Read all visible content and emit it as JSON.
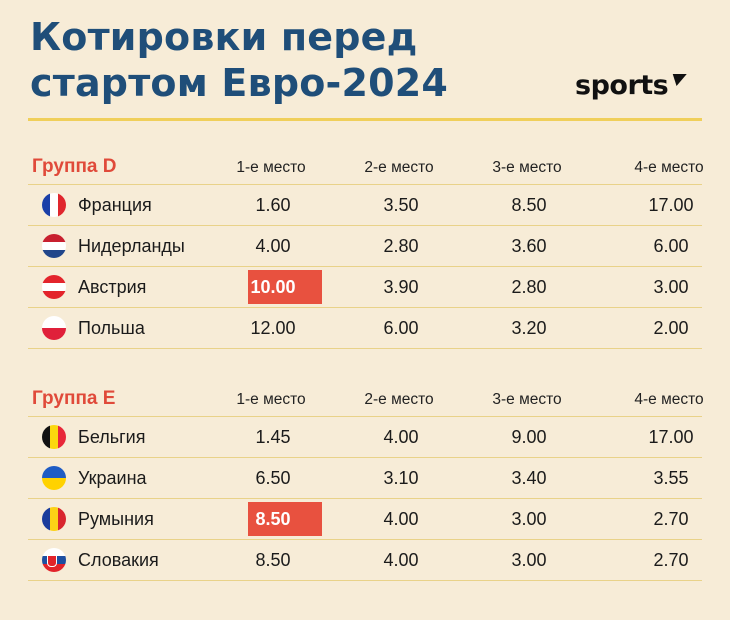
{
  "title": {
    "line1": "Котировки перед",
    "line2": "стартом Евро-2024"
  },
  "logo": {
    "text": "sports"
  },
  "colors": {
    "title": "#1f4e79",
    "accent": "#e04a3a",
    "highlight": "#e8513f",
    "rule": "#f0cf5a",
    "background": "#f7ecd7"
  },
  "columns": [
    "1-е место",
    "2-е место",
    "3-е место",
    "4-е место"
  ],
  "groups": [
    {
      "name": "Группа D",
      "rows": [
        {
          "country": "Франция",
          "flag": "france-flag-icon",
          "values": [
            "1.60",
            "3.50",
            "8.50",
            "17.00"
          ],
          "highlight": false
        },
        {
          "country": "Нидерланды",
          "flag": "netherlands-flag-icon",
          "values": [
            "4.00",
            "2.80",
            "3.60",
            "6.00"
          ],
          "highlight": false
        },
        {
          "country": "Австрия",
          "flag": "austria-flag-icon",
          "values": [
            "10.00",
            "3.90",
            "2.80",
            "3.00"
          ],
          "highlight": true
        },
        {
          "country": "Польша",
          "flag": "poland-flag-icon",
          "values": [
            "12.00",
            "6.00",
            "3.20",
            "2.00"
          ],
          "highlight": false
        }
      ]
    },
    {
      "name": "Группа Е",
      "rows": [
        {
          "country": "Бельгия",
          "flag": "belgium-flag-icon",
          "values": [
            "1.45",
            "4.00",
            "9.00",
            "17.00"
          ],
          "highlight": false
        },
        {
          "country": "Украина",
          "flag": "ukraine-flag-icon",
          "values": [
            "6.50",
            "3.10",
            "3.40",
            "3.55"
          ],
          "highlight": false
        },
        {
          "country": "Румыния",
          "flag": "romania-flag-icon",
          "values": [
            "8.50",
            "4.00",
            "3.00",
            "2.70"
          ],
          "highlight": true
        },
        {
          "country": "Словакия",
          "flag": "slovakia-flag-icon",
          "values": [
            "8.50",
            "4.00",
            "3.00",
            "2.70"
          ],
          "highlight": false
        }
      ]
    }
  ]
}
